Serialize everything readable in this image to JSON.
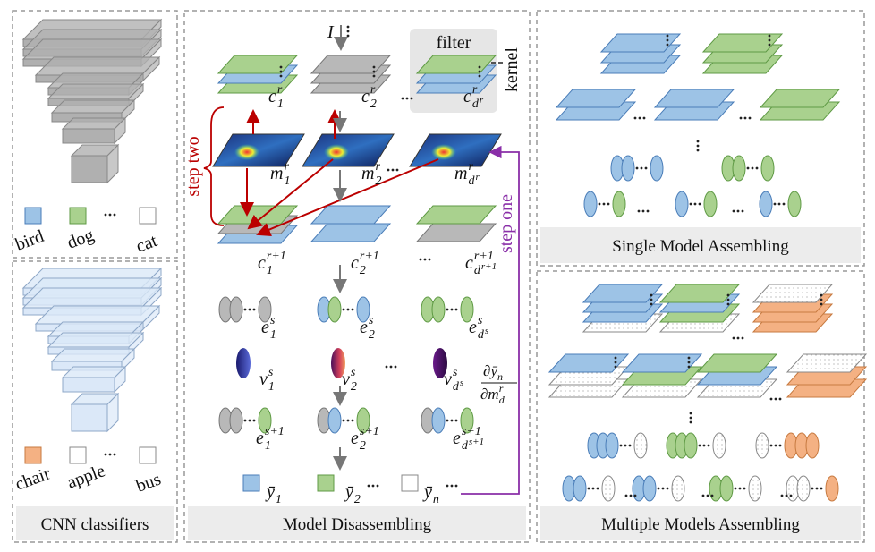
{
  "cnn_panel": {
    "caption": "CNN classifiers",
    "top_legend": [
      "bird",
      "dog",
      "cat"
    ],
    "bottom_legend": [
      "chair",
      "apple",
      "bus"
    ]
  },
  "disassembling_panel": {
    "caption": "Model Disassembling",
    "input": "I",
    "filter": "filter",
    "kernel": "kernel",
    "step_two": "step two",
    "step_one": "step one",
    "labels": [
      {
        "base": "c",
        "sub": "1",
        "sup": "r"
      },
      {
        "base": "c",
        "sub": "2",
        "sup": "r"
      },
      {
        "base": "c",
        "sub": "d",
        "sub_sup": "r",
        "sup": "r"
      },
      {
        "base": "m",
        "sub": "1",
        "sup": "r"
      },
      {
        "base": "m",
        "sub": "2",
        "sup": "r"
      },
      {
        "base": "m",
        "sub": "d",
        "sub_sup": "r",
        "sup": "r"
      },
      {
        "base": "c",
        "sub": "1",
        "sup": "r+1"
      },
      {
        "base": "c",
        "sub": "2",
        "sup": "r+1"
      },
      {
        "base": "c",
        "sub": "d",
        "sub_sup": "r+1",
        "sup": "r+1"
      },
      {
        "base": "e",
        "sub": "1",
        "sup": "s"
      },
      {
        "base": "e",
        "sub": "2",
        "sup": "s"
      },
      {
        "base": "e",
        "sub": "d",
        "sub_sup": "s",
        "sup": "s"
      },
      {
        "base": "v",
        "sub": "1",
        "sup": "s"
      },
      {
        "base": "v",
        "sub": "2",
        "sup": "s"
      },
      {
        "base": "v",
        "sub": "d",
        "sub_sup": "s",
        "sup": "s"
      },
      {
        "base": "e",
        "sub": "1",
        "sup": "s+1"
      },
      {
        "base": "e",
        "sub": "2",
        "sup": "s+1"
      },
      {
        "base": "e",
        "sub": "d",
        "sub_sup": "s+1",
        "sup": "s+1"
      },
      {
        "base": "ȳ",
        "sub": "1"
      },
      {
        "base": "ȳ",
        "sub": "2"
      },
      {
        "base": "ȳ",
        "sub": "n"
      }
    ],
    "derivative": {
      "num": "∂ȳ",
      "num_sub": "n",
      "den": "∂m",
      "den_sub": "d",
      "den_sup": "r"
    }
  },
  "single_panel": {
    "caption": "Single Model Assembling"
  },
  "multiple_panel": {
    "caption": "Multiple Models Assembling"
  }
}
